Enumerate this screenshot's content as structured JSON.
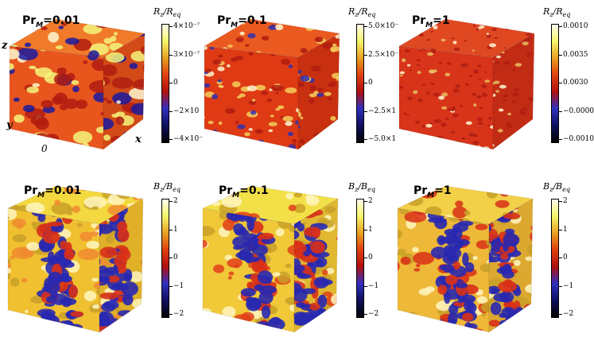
{
  "panels": [
    {
      "title": "Pr_M=0.01",
      "cbar_title": "R_z/R_eq",
      "ticks": [
        "4×10⁻⁷",
        "3×10⁻⁷",
        "0",
        "−2×10",
        "−4×10⁻"
      ],
      "colors": {
        "front": "#e8561e",
        "side": "#d24a17",
        "top": "#f07a2a",
        "spot1": "#1a1aa0",
        "spot2": "#f5f57a"
      }
    },
    {
      "title": "Pr_M=0.1",
      "cbar_title": "R_z/R_eq",
      "ticks": [
        "5.0×10⁻",
        "2.5×10⁻",
        "0",
        "−2.5×1",
        "−5.0×1"
      ],
      "colors": {
        "front": "#de3a14",
        "side": "#c8300f",
        "top": "#ea5a20",
        "spot1": "#3030b0",
        "spot2": "#f5d05a"
      }
    },
    {
      "title": "Pr_M=1",
      "cbar_title": "R_z/R_eq",
      "ticks": [
        "0.0010",
        "0.0035",
        "0.0030",
        "−0.0000",
        "−0.0010"
      ],
      "colors": {
        "front": "#d8341a",
        "side": "#c22c14",
        "top": "#e04822",
        "spot1": "#e8c060",
        "spot2": "#b02010"
      }
    },
    {
      "title": "Pr_M=0.01",
      "cbar_title": "B_z/B_eq",
      "ticks": [
        "2",
        "1",
        "0",
        "−1",
        "−2"
      ],
      "colors": {
        "front": "#f0c030",
        "side": "#e0b028",
        "top": "#f3d840",
        "spot1": "#2020b8",
        "spot2": "#f08a30"
      }
    },
    {
      "title": "Pr_M=0.1",
      "cbar_title": "B_z/B_eq",
      "ticks": [
        "2",
        "1",
        "0",
        "−1",
        "−2"
      ],
      "colors": {
        "front": "#f0c838",
        "side": "#e0b830",
        "top": "#f3e048",
        "spot1": "#2424b8",
        "spot2": "#e0401a"
      }
    },
    {
      "title": "Pr_M=1",
      "cbar_title": "B_z/B_eq",
      "ticks": [
        "2",
        "1",
        "0",
        "−1",
        "−2"
      ],
      "colors": {
        "front": "#eeb838",
        "side": "#dca830",
        "top": "#f2d048",
        "spot1": "#2424b0",
        "spot2": "#d83018"
      }
    }
  ],
  "axes": {
    "z": "z",
    "y": "y",
    "x": "x",
    "origin": "0"
  },
  "colormap": [
    "#ffffee",
    "#f5f56a",
    "#e8a020",
    "#e04010",
    "#b01010",
    "#3030c0",
    "#101060",
    "#000000"
  ]
}
